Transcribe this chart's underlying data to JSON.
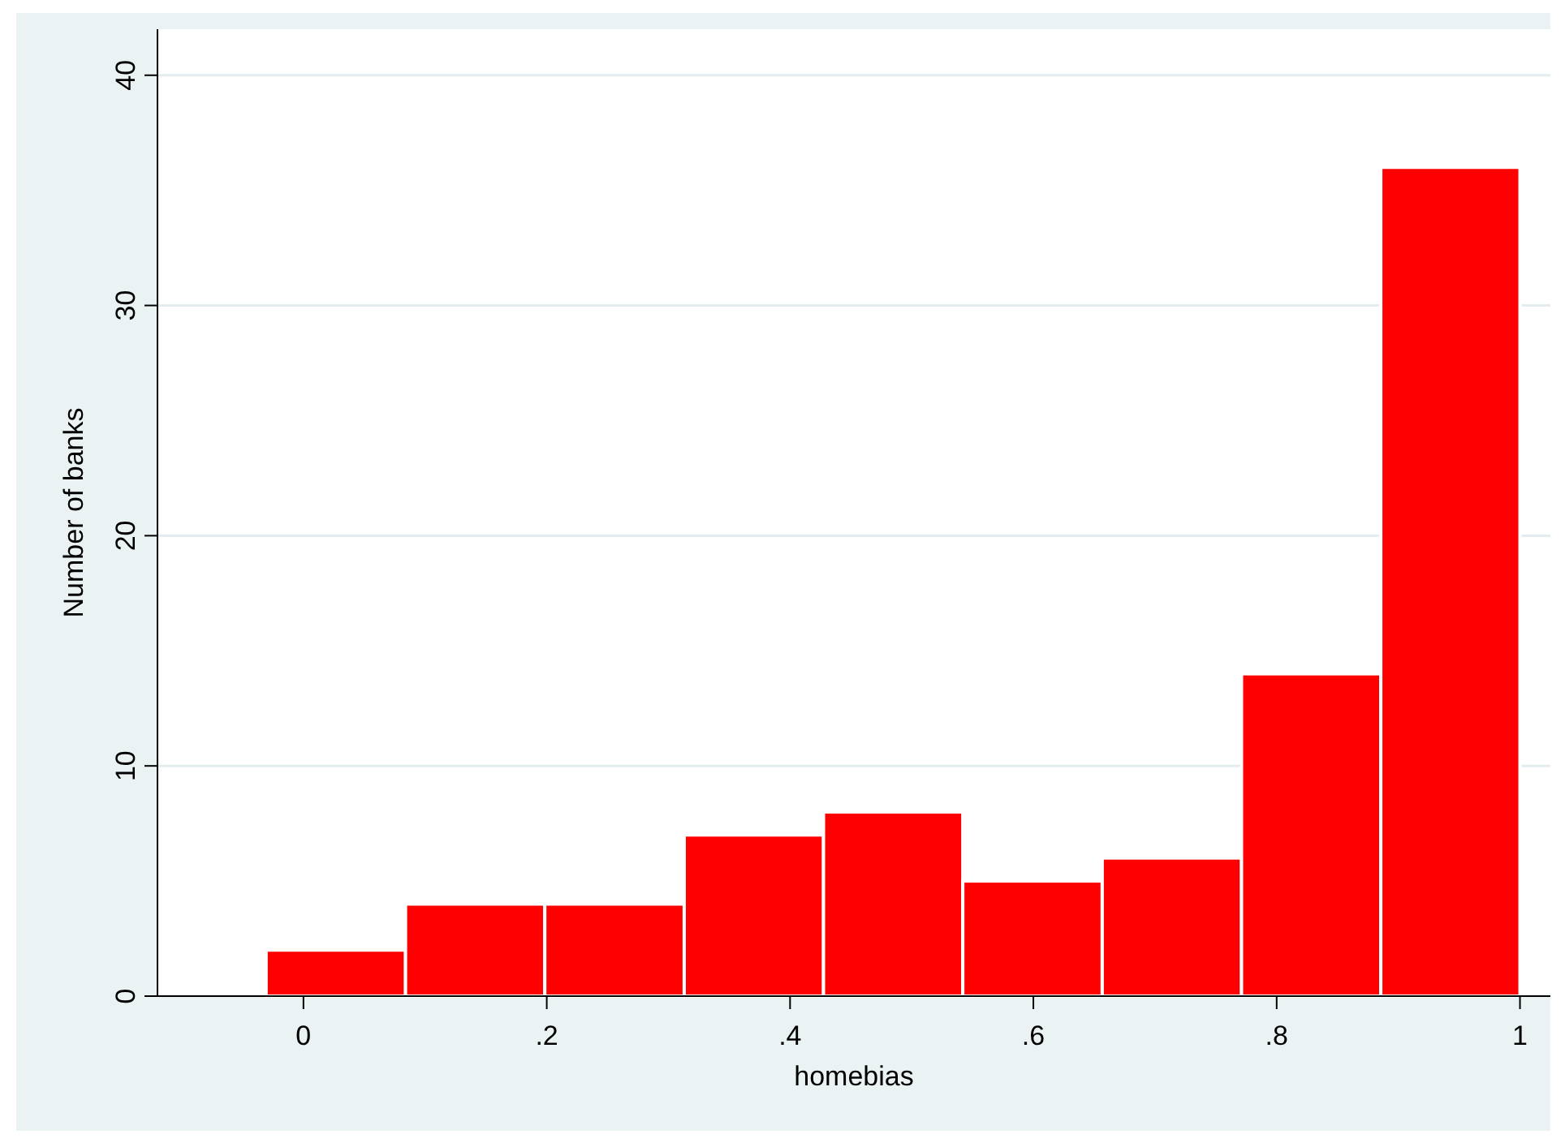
{
  "chart_data": {
    "type": "histogram",
    "xlabel": "homebias",
    "ylabel": "Number of banks",
    "bins": [
      -0.0307,
      0.0839,
      0.1984,
      0.313,
      0.4275,
      0.542,
      0.6566,
      0.7711,
      0.8856,
      1.0
    ],
    "values": [
      2,
      4,
      4,
      7,
      8,
      5,
      6,
      14,
      36
    ],
    "color": "#ff0000",
    "xlim": [
      -0.12,
      1.025
    ],
    "xticks": [
      {
        "value": 0,
        "label": "0"
      },
      {
        "value": 0.2,
        "label": ".2"
      },
      {
        "value": 0.4,
        "label": ".4"
      },
      {
        "value": 0.6,
        "label": ".6"
      },
      {
        "value": 0.8,
        "label": ".8"
      },
      {
        "value": 1,
        "label": "1"
      }
    ],
    "ylim": [
      0,
      42
    ],
    "yticks": [
      0,
      10,
      20,
      30,
      40
    ],
    "grid": "y"
  }
}
